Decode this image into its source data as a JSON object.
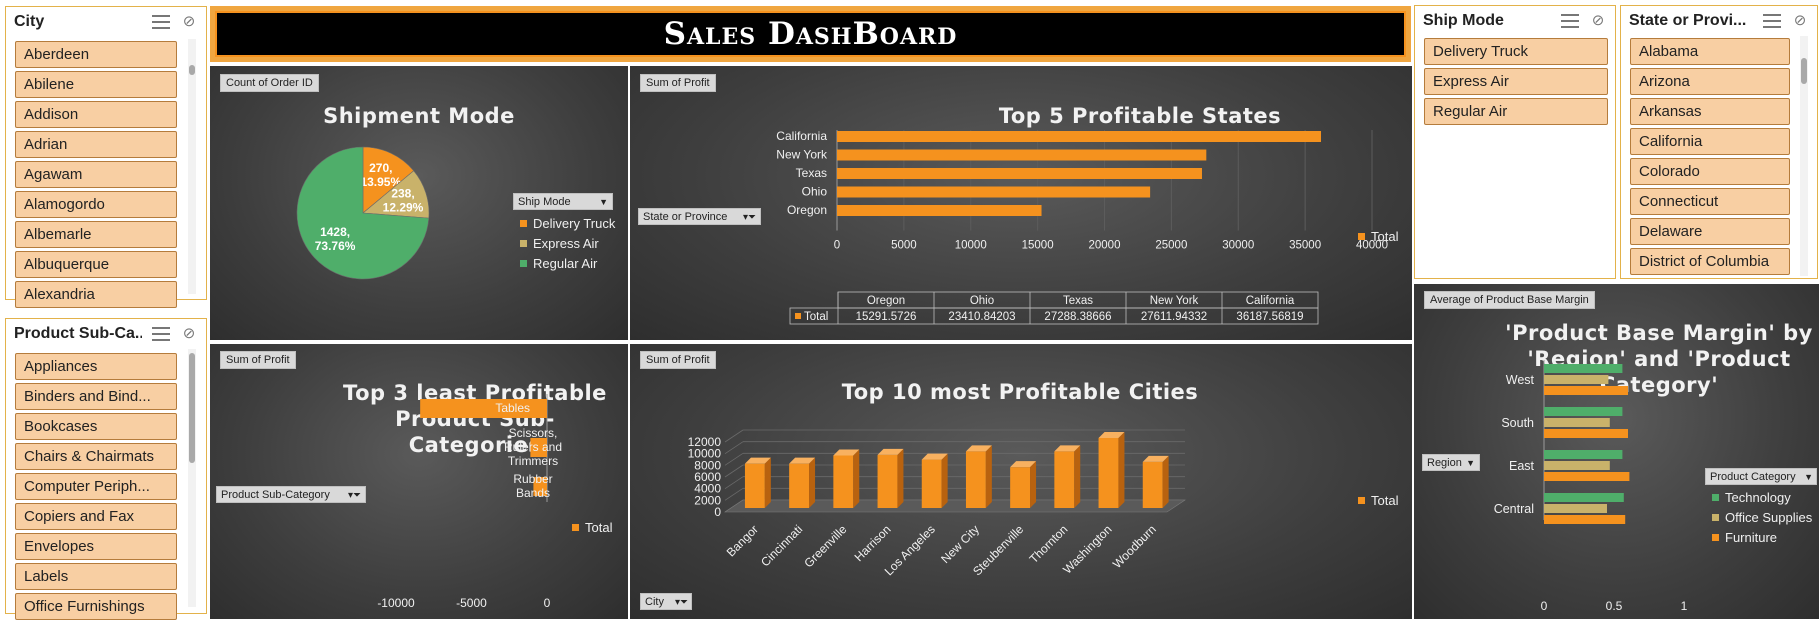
{
  "colors": {
    "orange": "#f5921e",
    "tan": "#c9b26a",
    "green": "#4fae6a",
    "slicer_fill": "#f8cfa3",
    "panel": "#3f3f3f"
  },
  "dashboard_title": "Sales DashBoard",
  "slicers": {
    "city": {
      "title": "City",
      "items": [
        "Aberdeen",
        "Abilene",
        "Addison",
        "Adrian",
        "Agawam",
        "Alamogordo",
        "Albemarle",
        "Albuquerque",
        "Alexandria"
      ]
    },
    "sub_category": {
      "title": "Product Sub-Ca...",
      "items": [
        "Appliances",
        "Binders and Bind...",
        "Bookcases",
        "Chairs & Chairmats",
        "Computer Periph...",
        "Copiers and Fax",
        "Envelopes",
        "Labels",
        "Office Furnishings"
      ]
    },
    "ship_mode": {
      "title": "Ship Mode",
      "items": [
        "Delivery Truck",
        "Express Air",
        "Regular Air"
      ]
    },
    "state": {
      "title": "State or Provi...",
      "items": [
        "Alabama",
        "Arizona",
        "Arkansas",
        "California",
        "Colorado",
        "Connecticut",
        "Delaware",
        "District of Columbia"
      ]
    }
  },
  "icons": {
    "multi_select": "multi-select-icon",
    "clear_filter": "clear-filter-icon",
    "filter": "filter-icon"
  },
  "panels": {
    "shipment": {
      "field": "Count of Order ID",
      "title": "Shipment Mode",
      "legend_header": "Ship Mode"
    },
    "states": {
      "field": "Sum of Profit",
      "title": "Top 5 Profitable States",
      "filter": "State or Province",
      "legend": "Total"
    },
    "least": {
      "field": "Sum of Profit",
      "title_line1": "Top 3 least Profitable",
      "title_line2": "Product Sub- Categories",
      "filter": "Product Sub-Category",
      "legend": "Total"
    },
    "cities": {
      "field": "Sum of Profit",
      "title": "Top 10 most Profitable Cities",
      "filter": "City",
      "legend": "Total"
    },
    "margin": {
      "field": "Average of Product Base Margin",
      "title_line1": "'Product Base Margin' by",
      "title_line2": "'Region' and 'Product",
      "title_line3": "Category'",
      "filter": "Region",
      "legend_header": "Product Category"
    }
  },
  "chart_data": [
    {
      "type": "pie",
      "title": "Shipment Mode",
      "field": "Count of Order ID",
      "series": [
        {
          "name": "Delivery Truck",
          "value": 270,
          "label": "270, 13.95%",
          "color": "#f5921e"
        },
        {
          "name": "Express Air",
          "value": 238,
          "label": "238, 12.29%",
          "color": "#c9b26a"
        },
        {
          "name": "Regular Air",
          "value": 1428,
          "label": "1428, 73.76%",
          "color": "#4fae6a"
        }
      ]
    },
    {
      "type": "bar",
      "orientation": "horizontal",
      "title": "Top 5 Profitable States",
      "field": "Sum of Profit",
      "categories": [
        "California",
        "New York",
        "Texas",
        "Ohio",
        "Oregon"
      ],
      "values": [
        36187.56819,
        27611.94332,
        27288.38666,
        23410.84203,
        15291.5726
      ],
      "xlim": [
        0,
        40000
      ],
      "xticks": [
        "0",
        "5000",
        "10000",
        "15000",
        "20000",
        "25000",
        "30000",
        "35000",
        "40000"
      ],
      "legend": "Total",
      "table": {
        "header": [
          "Oregon",
          "Ohio",
          "Texas",
          "New York",
          "California"
        ],
        "row_label": "Total",
        "values": [
          "15291.5726",
          "23410.84203",
          "27288.38666",
          "27611.94332",
          "36187.56819"
        ]
      }
    },
    {
      "type": "bar",
      "orientation": "horizontal",
      "title": "Top 3 least Profitable Product Sub- Categories",
      "field": "Sum of Profit",
      "categories": [
        "Tables",
        "Scissors, Rulers and Trimmers",
        "Rubber Bands"
      ],
      "values": [
        -8400,
        -1100,
        -900
      ],
      "xlim": [
        -10000,
        0
      ],
      "xticks": [
        "-10000",
        "-5000",
        "0"
      ],
      "legend": "Total"
    },
    {
      "type": "bar",
      "style": "3d-column",
      "title": "Top 10 most Profitable Cities",
      "field": "Sum of Profit",
      "categories": [
        "Bangor",
        "Cincinnati",
        "Greenville",
        "Harrison",
        "Los Angeles",
        "New City",
        "Steubenville",
        "Thornton",
        "Washington",
        "Woodburn"
      ],
      "values": [
        7600,
        7600,
        9000,
        9100,
        8300,
        9700,
        7000,
        9700,
        12000,
        7900
      ],
      "ylim": [
        0,
        12000
      ],
      "yticks": [
        "0",
        "2000",
        "4000",
        "6000",
        "8000",
        "10000",
        "12000"
      ],
      "legend": "Total"
    },
    {
      "type": "bar",
      "orientation": "horizontal",
      "title": "'Product Base Margin' by 'Region' and 'Product Category'",
      "field": "Average of Product Base Margin",
      "categories": [
        "West",
        "South",
        "East",
        "Central"
      ],
      "series": [
        {
          "name": "Technology",
          "color": "#4fae6a",
          "values": [
            0.56,
            0.56,
            0.56,
            0.57
          ]
        },
        {
          "name": "Office Supplies",
          "color": "#c9b26a",
          "values": [
            0.46,
            0.47,
            0.47,
            0.45
          ]
        },
        {
          "name": "Furniture",
          "color": "#f5921e",
          "values": [
            0.6,
            0.6,
            0.61,
            0.58
          ]
        }
      ],
      "xlim": [
        0,
        1
      ],
      "xticks": [
        "0",
        "0.5",
        "1"
      ],
      "legend_header": "Product Category"
    }
  ]
}
